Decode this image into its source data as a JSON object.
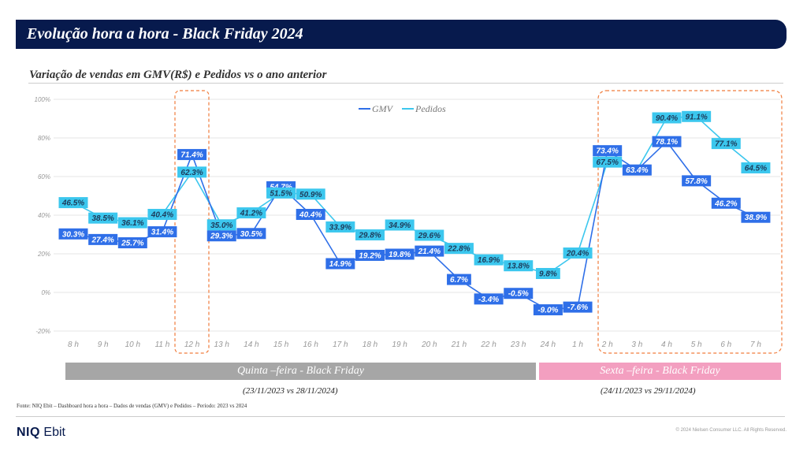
{
  "header": {
    "title": "Evolução hora a hora - Black Friday 2024"
  },
  "subtitle": "Variação de vendas em GMV(R$) e Pedidos vs o ano anterior",
  "colors": {
    "header_bg": "#071a4d",
    "gmv": "#2f6fe8",
    "pedidos": "#3cc7ee",
    "highlight_box": "#f07c3c",
    "band_thursday": "#a6a6a6",
    "band_friday": "#f39fc0"
  },
  "chart_data": {
    "type": "line",
    "categories": [
      "8 h",
      "9 h",
      "10 h",
      "11 h",
      "12 h",
      "13 h",
      "14 h",
      "15 h",
      "16 h",
      "17 h",
      "18 h",
      "19 h",
      "20 h",
      "21 h",
      "22 h",
      "23 h",
      "24 h",
      "1 h",
      "2 h",
      "3 h",
      "4 h",
      "5 h",
      "6 h",
      "7 h"
    ],
    "series": [
      {
        "name": "GMV",
        "values": [
          30.3,
          27.4,
          25.7,
          31.4,
          71.4,
          29.3,
          30.5,
          54.7,
          40.4,
          14.9,
          19.2,
          19.8,
          21.4,
          6.7,
          -3.4,
          -0.5,
          -9.0,
          -7.6,
          73.4,
          63.4,
          78.1,
          57.8,
          46.2,
          38.9
        ],
        "labels": [
          "30.3%",
          "27.4%",
          "25.7%",
          "31.4%",
          "71.4%",
          "29.3%",
          "30.5%",
          "54.7%",
          "40.4%",
          "14.9%",
          "19.2%",
          "19.8%",
          "21.4%",
          "6.7%",
          "-3.4%",
          "-0.5%",
          "-9.0%",
          "-7.6%",
          "73.4%",
          "63.4%",
          "78.1%",
          "57.8%",
          "46.2%",
          "38.9%"
        ]
      },
      {
        "name": "Pedidos",
        "values": [
          46.5,
          38.5,
          36.1,
          40.4,
          62.3,
          35.0,
          41.2,
          51.5,
          50.9,
          33.9,
          29.8,
          34.9,
          29.6,
          22.8,
          16.9,
          13.8,
          9.8,
          20.4,
          67.5,
          63.4,
          90.4,
          91.1,
          77.1,
          64.5
        ],
        "labels": [
          "46.5%",
          "38.5%",
          "36.1%",
          "40.4%",
          "62.3%",
          "35.0%",
          "41.2%",
          "51.5%",
          "50.9%",
          "33.9%",
          "29.8%",
          "34.9%",
          "29.6%",
          "22.8%",
          "16.9%",
          "13.8%",
          "9.8%",
          "20.4%",
          "67.5%",
          "",
          "90.4%",
          "91.1%",
          "77.1%",
          "64.5%"
        ]
      }
    ],
    "yticks": [
      "100%",
      "80%",
      "60%",
      "40%",
      "20%",
      "0%",
      "-20%"
    ],
    "ylim": [
      -20,
      100
    ],
    "grid": true,
    "legend": "top-center",
    "highlight_categories": [
      "12 h",
      "2 h to 7 h"
    ]
  },
  "bands": {
    "thursday": {
      "label": "Quinta –feira - Black Friday",
      "period": "(23/11/2023 vs 28/11/2024)"
    },
    "friday": {
      "label": "Sexta –feira - Black Friday",
      "period": "(24/11/2023 vs 29/11/2024)"
    }
  },
  "source": "Fonte: NIQ Ebit – Dashboard hora a hora – Dados de vendas (GMV) e Pedidos – Período: 2023 vs 2024",
  "brand": {
    "bold": "NIQ",
    "rest": "Ebit"
  },
  "copyright": "© 2024 Nielsen Consumer LLC. All Rights Reserved."
}
